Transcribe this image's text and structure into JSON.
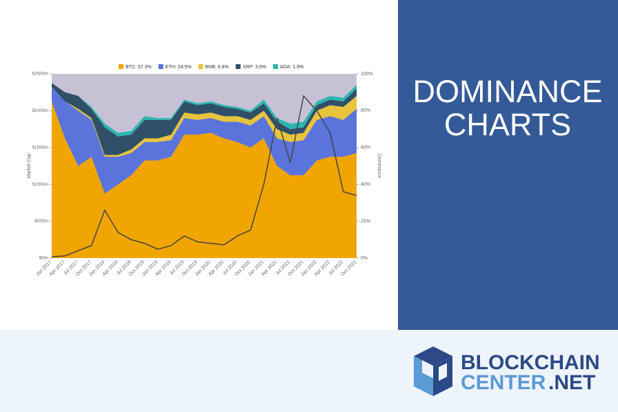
{
  "chart_data": {
    "type": "area",
    "categories": [
      "Jan 2017",
      "Apr 2017",
      "Jul 2017",
      "Oct 2017",
      "Jan 2018",
      "Apr 2018",
      "Jul 2018",
      "Oct 2018",
      "Jan 2019",
      "Apr 2019",
      "Jul 2019",
      "Oct 2019",
      "Jan 2020",
      "Apr 2020",
      "Jul 2020",
      "Oct 2020",
      "Jan 2021",
      "Apr 2021",
      "Jul 2021",
      "Oct 2021",
      "Jan 2022",
      "Apr 2022",
      "Jul 2022",
      "Oct 2022"
    ],
    "series": [
      {
        "name": "BTC: 57.3%",
        "color": "#f0a500",
        "axis": "y2",
        "values": [
          85,
          65,
          50,
          55,
          35,
          40,
          45,
          53,
          53,
          55,
          67,
          67,
          68,
          65,
          63,
          60,
          65,
          50,
          45,
          45,
          53,
          55,
          55,
          57
        ]
      },
      {
        "name": "ETH: 24.5%",
        "color": "#5a74dc",
        "axis": "y2",
        "values": [
          8,
          20,
          30,
          20,
          20,
          15,
          12,
          10,
          10,
          9,
          9,
          8,
          8,
          9,
          11,
          12,
          12,
          15,
          18,
          19,
          22,
          22,
          20,
          24
        ]
      },
      {
        "name": "BNB: 6.8%",
        "color": "#e8c33c",
        "axis": "y2",
        "values": [
          0,
          0,
          1,
          1,
          1,
          1,
          2,
          2,
          2,
          3,
          3,
          3,
          3,
          3,
          3,
          3,
          3,
          5,
          4,
          4,
          5,
          6,
          7,
          7
        ]
      },
      {
        "name": "XRP: 3.6%",
        "color": "#2f5068",
        "axis": "y2",
        "values": [
          2,
          5,
          7,
          5,
          15,
          10,
          8,
          10,
          10,
          8,
          6,
          5,
          5,
          5,
          4,
          4,
          4,
          4,
          3,
          3,
          3,
          3,
          3,
          4
        ]
      },
      {
        "name": "ADA: 1.9%",
        "color": "#2bb6b0",
        "axis": "y2",
        "values": [
          0,
          0,
          0,
          1,
          2,
          2,
          2,
          2,
          1,
          1,
          1,
          1,
          1,
          1,
          1,
          1,
          2,
          2,
          3,
          3,
          2,
          2,
          2,
          2
        ]
      }
    ],
    "market_cap": {
      "color": "#444444",
      "values": [
        18,
        30,
        100,
        170,
        650,
        350,
        250,
        200,
        120,
        170,
        300,
        220,
        200,
        180,
        300,
        380,
        1000,
        1900,
        1300,
        2200,
        2000,
        1700,
        900,
        850
      ]
    },
    "ylabel": "Market Cap",
    "y2label": "Dominance",
    "ylim": [
      0,
      2500
    ],
    "yticks": [
      {
        "value": 0,
        "label": "$0bn"
      },
      {
        "value": 500,
        "label": "$500bn"
      },
      {
        "value": 1000,
        "label": "$1000bn"
      },
      {
        "value": 1500,
        "label": "$1500bn"
      },
      {
        "value": 2000,
        "label": "$2000bn"
      },
      {
        "value": 2500,
        "label": "$2500bn"
      }
    ],
    "y2lim": [
      0,
      100
    ],
    "y2ticks": [
      {
        "value": 0,
        "label": "0%"
      },
      {
        "value": 20,
        "label": "20%"
      },
      {
        "value": 40,
        "label": "40%"
      },
      {
        "value": 60,
        "label": "60%"
      },
      {
        "value": 80,
        "label": "80%"
      },
      {
        "value": 100,
        "label": "100%"
      }
    ]
  },
  "banner": {
    "line1": "DOMINANCE",
    "line2": "CHARTS"
  },
  "logo": {
    "line1": "BLOCKCHAIN",
    "line2": "CENTER",
    "line3": ".NET"
  }
}
